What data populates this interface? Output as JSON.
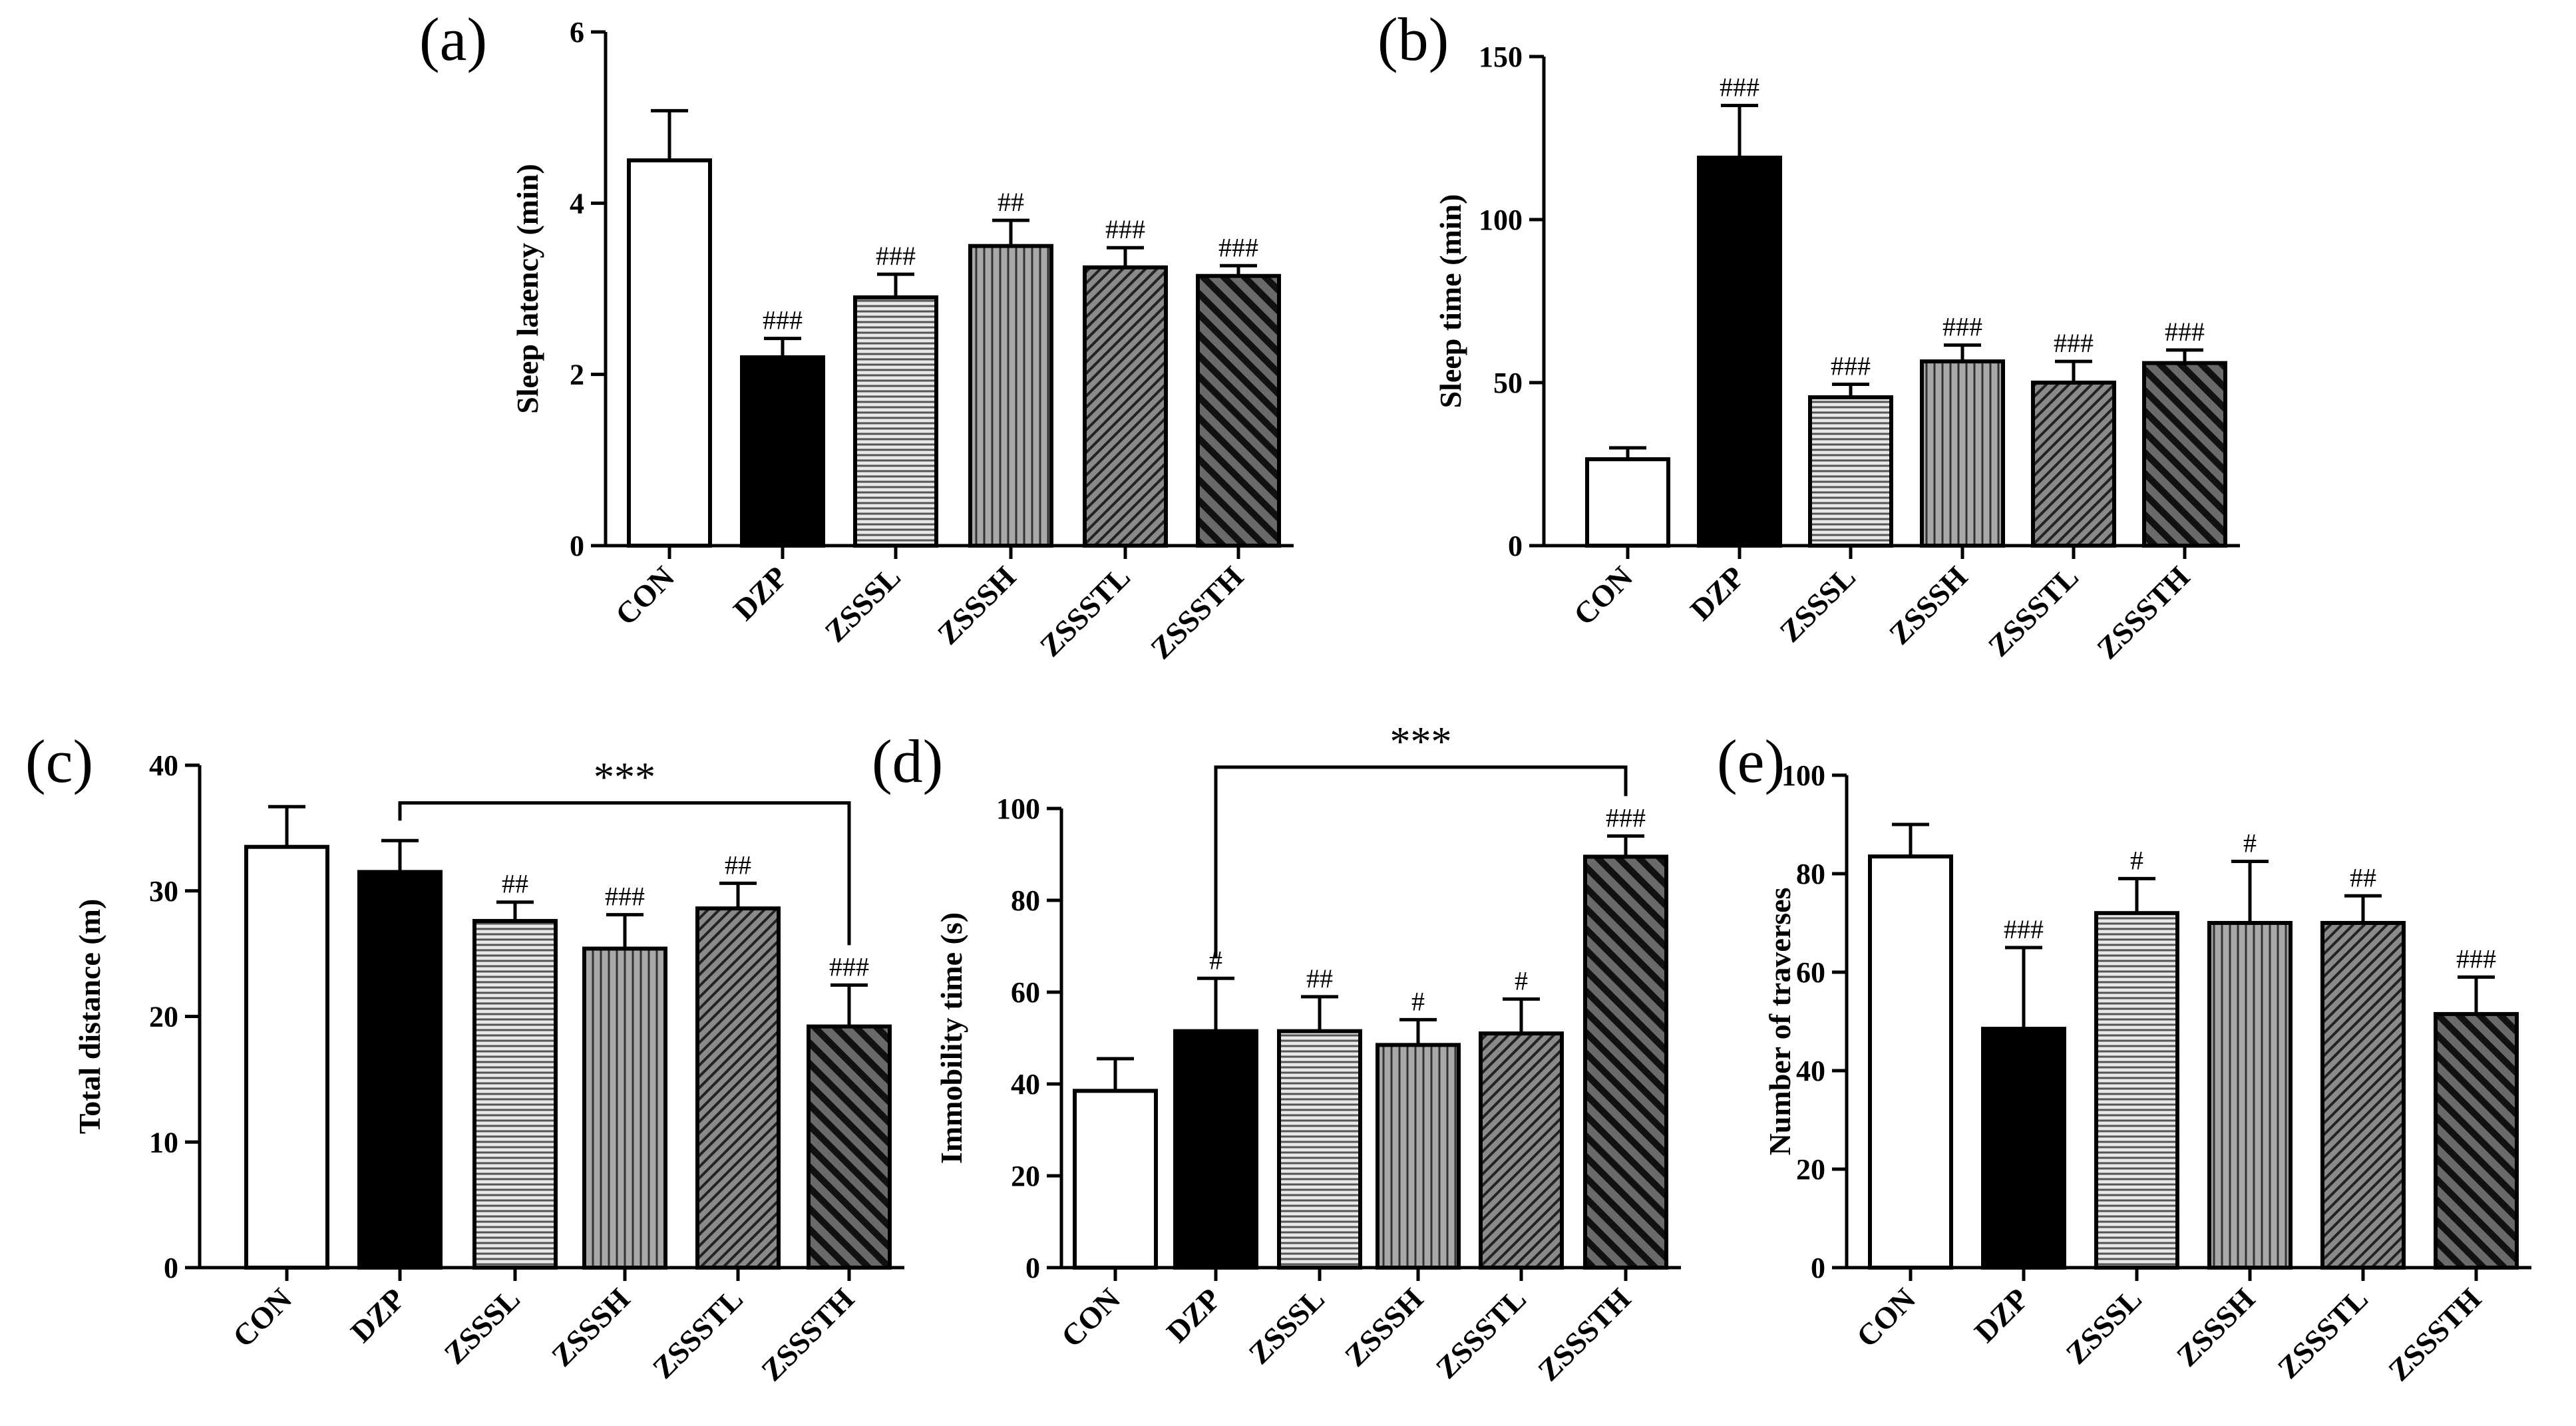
{
  "chart_data": [
    {
      "type": "bar",
      "panel_label": "(a)",
      "ylabel": "Sleep latency (min)",
      "ylim": [
        0,
        6
      ],
      "yticks": [
        "0",
        "2",
        "4",
        "6"
      ],
      "categories": [
        "CON",
        "DZP",
        "ZSSSL",
        "ZSSSH",
        "ZSSSTL",
        "ZSSSTH"
      ],
      "values": [
        4.5,
        2.2,
        2.9,
        3.5,
        3.25,
        3.15
      ],
      "errors": [
        0.58,
        0.22,
        0.27,
        0.3,
        0.23,
        0.12
      ],
      "annotations": [
        "",
        "###",
        "###",
        "##",
        "###",
        "###"
      ],
      "bracket": null
    },
    {
      "type": "bar",
      "panel_label": "(b)",
      "ylabel": "Sleep time (min)",
      "ylim": [
        0,
        150
      ],
      "yticks": [
        "0",
        "50",
        "100",
        "150"
      ],
      "categories": [
        "CON",
        "DZP",
        "ZSSSL",
        "ZSSSH",
        "ZSSSTL",
        "ZSSSTH"
      ],
      "values": [
        26.5,
        119,
        45.5,
        56.5,
        50,
        56
      ],
      "errors": [
        3.5,
        16,
        4,
        5,
        6.5,
        4
      ],
      "annotations": [
        "",
        "###",
        "###",
        "###",
        "###",
        "###"
      ],
      "bracket": null
    },
    {
      "type": "bar",
      "panel_label": "(c)",
      "ylabel": "Total distance (m)",
      "ylim": [
        0,
        40
      ],
      "yticks": [
        "0",
        "10",
        "20",
        "30",
        "40"
      ],
      "categories": [
        "CON",
        "DZP",
        "ZSSSL",
        "ZSSSH",
        "ZSSSTL",
        "ZSSSTH"
      ],
      "values": [
        33.5,
        31.5,
        27.6,
        25.4,
        28.6,
        19.2
      ],
      "errors": [
        3.2,
        2.5,
        1.5,
        2.7,
        2.0,
        3.3
      ],
      "annotations": [
        "",
        "",
        "##",
        "###",
        "##",
        "###"
      ],
      "bracket": {
        "from": 1,
        "to": 5,
        "label": "***",
        "y": 37
      }
    },
    {
      "type": "bar",
      "panel_label": "(d)",
      "ylabel": "Immobility time (s)",
      "ylim": [
        0,
        100
      ],
      "yticks": [
        "0",
        "20",
        "40",
        "60",
        "80",
        "100"
      ],
      "categories": [
        "CON",
        "DZP",
        "ZSSSL",
        "ZSSSH",
        "ZSSSTL",
        "ZSSSTH"
      ],
      "values": [
        38.5,
        51.5,
        51.5,
        48.5,
        51,
        89.5
      ],
      "errors": [
        7,
        11.5,
        7.5,
        5.5,
        7.5,
        4.5
      ],
      "annotations": [
        "",
        "#",
        "##",
        "#",
        "#",
        "###"
      ],
      "bracket": {
        "from": 1,
        "to": 5,
        "label": "***",
        "y": 109
      }
    },
    {
      "type": "bar",
      "panel_label": "(e)",
      "ylabel": "Number of traverses",
      "ylim": [
        0,
        100
      ],
      "yticks": [
        "0",
        "20",
        "40",
        "60",
        "80",
        "100"
      ],
      "categories": [
        "CON",
        "DZP",
        "ZSSSL",
        "ZSSSH",
        "ZSSSTL",
        "ZSSSTH"
      ],
      "values": [
        83.5,
        48.5,
        72,
        70,
        70,
        51.5
      ],
      "errors": [
        6.5,
        16.5,
        7,
        12.5,
        5.5,
        7.5
      ],
      "annotations": [
        "",
        "###",
        "#",
        "#",
        "##",
        "###"
      ],
      "bracket": null
    }
  ],
  "style": {
    "bar_stroke": "#000000",
    "fills": [
      "#ffffff",
      "#000000",
      "#e8e8e8",
      "#9a9a9a",
      "#7a7a7a",
      "#4a4a4a"
    ],
    "pattern_lines": [
      "",
      "",
      "#555555",
      "#333333",
      "#2a2a2a",
      "#111111"
    ]
  }
}
